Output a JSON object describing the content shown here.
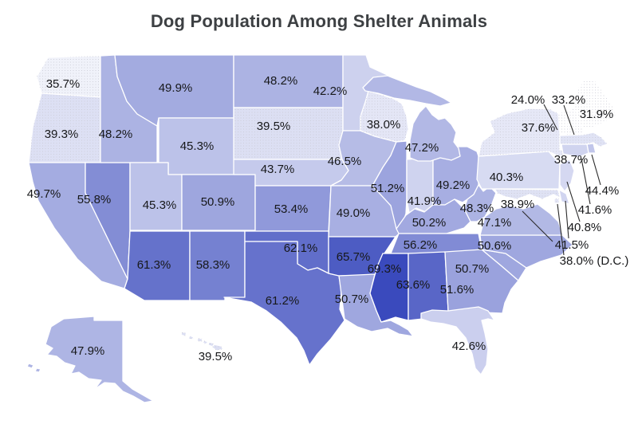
{
  "title": "Dog Population Among Shelter Animals",
  "chart_data": {
    "type": "heatmap",
    "subtype": "us-choropleth",
    "title": "Dog Population Among Shelter Animals",
    "unit": "%",
    "legend": "none",
    "colorscale": {
      "low_color": "#ffffff",
      "high_color": "#2b3cb8",
      "domain_min": 33,
      "domain_max": 72
    },
    "label_color": "#17181a",
    "title_color": "#3d4043",
    "states": [
      {
        "code": "WA",
        "name": "Washington",
        "value": 35.7
      },
      {
        "code": "OR",
        "name": "Oregon",
        "value": 39.3
      },
      {
        "code": "CA",
        "name": "California",
        "value": 49.7
      },
      {
        "code": "NV",
        "name": "Nevada",
        "value": 55.8
      },
      {
        "code": "ID",
        "name": "Idaho",
        "value": 48.2
      },
      {
        "code": "MT",
        "name": "Montana",
        "value": 49.9
      },
      {
        "code": "WY",
        "name": "Wyoming",
        "value": 45.3
      },
      {
        "code": "UT",
        "name": "Utah",
        "value": 45.3
      },
      {
        "code": "CO",
        "name": "Colorado",
        "value": 50.9
      },
      {
        "code": "AZ",
        "name": "Arizona",
        "value": 61.3
      },
      {
        "code": "NM",
        "name": "New Mexico",
        "value": 58.3
      },
      {
        "code": "ND",
        "name": "North Dakota",
        "value": 48.2
      },
      {
        "code": "SD",
        "name": "South Dakota",
        "value": 39.5
      },
      {
        "code": "NE",
        "name": "Nebraska",
        "value": 43.7
      },
      {
        "code": "KS",
        "name": "Kansas",
        "value": 53.4
      },
      {
        "code": "OK",
        "name": "Oklahoma",
        "value": 62.1
      },
      {
        "code": "TX",
        "name": "Texas",
        "value": 61.2
      },
      {
        "code": "MN",
        "name": "Minnesota",
        "value": 42.2
      },
      {
        "code": "IA",
        "name": "Iowa",
        "value": 46.5
      },
      {
        "code": "MO",
        "name": "Missouri",
        "value": 49.0
      },
      {
        "code": "AR",
        "name": "Arkansas",
        "value": 65.7
      },
      {
        "code": "LA",
        "name": "Louisiana",
        "value": 50.7
      },
      {
        "code": "WI",
        "name": "Wisconsin",
        "value": 38.0
      },
      {
        "code": "IL",
        "name": "Illinois",
        "value": 51.2
      },
      {
        "code": "IN",
        "name": "Indiana",
        "value": 41.9
      },
      {
        "code": "OH",
        "name": "Ohio",
        "value": 49.2
      },
      {
        "code": "MI",
        "name": "Michigan",
        "value": 47.2
      },
      {
        "code": "KY",
        "name": "Kentucky",
        "value": 50.2
      },
      {
        "code": "TN",
        "name": "Tennessee",
        "value": 56.2
      },
      {
        "code": "MS",
        "name": "Mississippi",
        "value": 69.3
      },
      {
        "code": "AL",
        "name": "Alabama",
        "value": 63.6
      },
      {
        "code": "GA",
        "name": "Georgia",
        "value": 51.6
      },
      {
        "code": "FL",
        "name": "Florida",
        "value": 42.6
      },
      {
        "code": "SC",
        "name": "South Carolina",
        "value": 50.7
      },
      {
        "code": "NC",
        "name": "North Carolina",
        "value": 50.6
      },
      {
        "code": "VA",
        "name": "Virginia",
        "value": 47.1
      },
      {
        "code": "WV",
        "name": "West Virginia",
        "value": 48.3
      },
      {
        "code": "PA",
        "name": "Pennsylvania",
        "value": 40.3
      },
      {
        "code": "NY",
        "name": "New York",
        "value": 37.6
      },
      {
        "code": "VT",
        "name": "Vermont",
        "value": 24.0
      },
      {
        "code": "NH",
        "name": "New Hampshire",
        "value": 33.2
      },
      {
        "code": "ME",
        "name": "Maine",
        "value": 31.9
      },
      {
        "code": "MA",
        "name": "Massachusetts",
        "value": 38.7
      },
      {
        "code": "RI",
        "name": "Rhode Island",
        "value": 44.4
      },
      {
        "code": "CT",
        "name": "Connecticut",
        "value": 41.6
      },
      {
        "code": "NJ",
        "name": "New Jersey",
        "value": 40.8
      },
      {
        "code": "DE",
        "name": "Delaware",
        "value": 41.5
      },
      {
        "code": "MD",
        "name": "Maryland",
        "value": 38.9
      },
      {
        "code": "DC",
        "name": "District of Columbia",
        "value": 38.0,
        "suffix": " (D.C.)"
      },
      {
        "code": "AK",
        "name": "Alaska",
        "value": 47.9
      },
      {
        "code": "HI",
        "name": "Hawaii",
        "value": 39.5
      }
    ]
  }
}
